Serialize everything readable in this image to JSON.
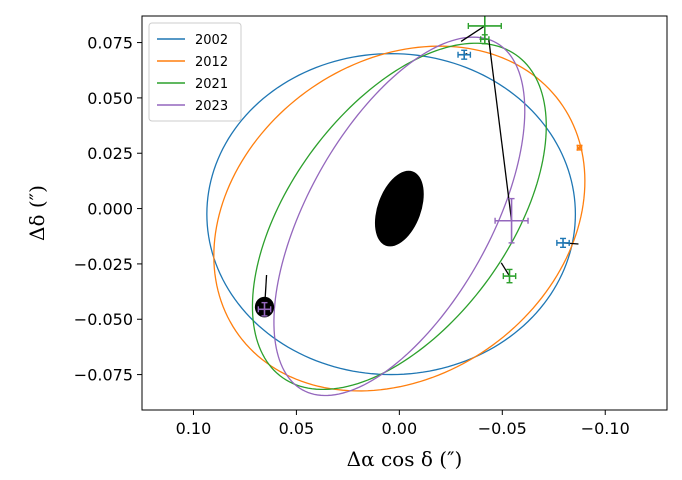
{
  "chart_data": {
    "type": "scatter",
    "xlabel": "Δα cos δ (″)",
    "ylabel": "Δδ (″)",
    "xlim": [
      0.125,
      -0.13
    ],
    "ylim": [
      -0.091,
      0.087
    ],
    "x_ticks": [
      0.1,
      0.05,
      0.0,
      -0.05,
      -0.1
    ],
    "x_tick_labels": [
      "0.10",
      "0.05",
      "0.00",
      "−0.05",
      "−0.10"
    ],
    "y_ticks": [
      -0.075,
      -0.05,
      -0.025,
      0.0,
      0.025,
      0.05,
      0.075
    ],
    "y_tick_labels": [
      "−0.075",
      "−0.050",
      "−0.025",
      "0.000",
      "0.025",
      "0.050",
      "0.075"
    ],
    "legend_position": "top-left",
    "primary": {
      "x": 0.0,
      "y": 0.0,
      "rx": 0.0105,
      "ry": 0.0105,
      "color": "#000000"
    },
    "series": [
      {
        "name": "2002",
        "color": "#1f77b4",
        "orbit": {
          "cx": 0.004,
          "cy": -0.0025,
          "a": 0.0895,
          "b": 0.0725,
          "angle": 0
        },
        "points": [
          {
            "x": -0.0315,
            "y": 0.0695,
            "xerr": 0.003,
            "yerr": 0.002,
            "model_x": -0.033,
            "model_y": 0.07
          },
          {
            "x": -0.0795,
            "y": -0.0155,
            "xerr": 0.003,
            "yerr": 0.002,
            "model_x": -0.087,
            "model_y": -0.016
          }
        ]
      },
      {
        "name": "2012",
        "color": "#ff7f0e",
        "orbit": {
          "cx": 0.0,
          "cy": -0.0045,
          "a": 0.0945,
          "b": 0.0725,
          "angle": 28
        },
        "points": [
          {
            "x": -0.0875,
            "y": 0.0275,
            "xerr": 0.001,
            "yerr": 0.001,
            "model_x": -0.087,
            "model_y": 0.027
          }
        ]
      },
      {
        "name": "2021",
        "color": "#2ca02c",
        "orbit": {
          "cx": 0.0,
          "cy": -0.0035,
          "a": 0.0925,
          "b": 0.0515,
          "angle": 50
        },
        "points": [
          {
            "x": -0.0415,
            "y": 0.0825,
            "xerr": 0.008,
            "yerr": 0.006,
            "model_x": -0.03,
            "model_y": 0.0755
          },
          {
            "x": -0.0535,
            "y": -0.0305,
            "xerr": 0.003,
            "yerr": 0.003,
            "model_x": -0.0495,
            "model_y": -0.0245
          },
          {
            "x": -0.0415,
            "y": 0.0765,
            "xerr": 0.002,
            "yerr": 0.002,
            "model_x": -0.039,
            "model_y": 0.0765
          }
        ]
      },
      {
        "name": "2023",
        "color": "#9467bd",
        "orbit": {
          "cx": 0.0,
          "cy": -0.0035,
          "a": 0.0915,
          "b": 0.0435,
          "angle": 58
        },
        "points": [
          {
            "x": -0.0545,
            "y": -0.0055,
            "xerr": 0.008,
            "yerr": 0.01,
            "model_x": -0.0435,
            "model_y": 0.076
          },
          {
            "x": 0.0655,
            "y": -0.0455,
            "xerr": 0.003,
            "yerr": 0.003,
            "model_x": 0.0645,
            "model_y": -0.03
          }
        ]
      }
    ],
    "secondary": {
      "x": 0.0655,
      "y": -0.0445,
      "rx": 0.0055,
      "ry": 0.0055,
      "color": "#000000"
    }
  }
}
